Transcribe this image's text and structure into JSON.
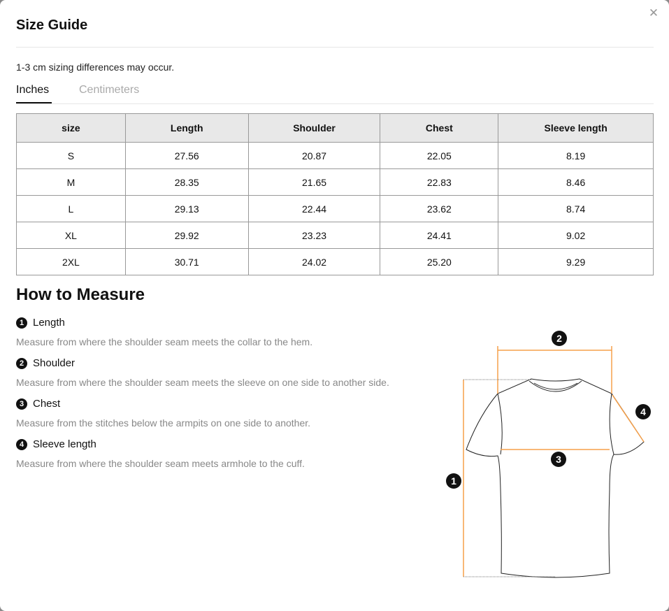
{
  "modal": {
    "title": "Size Guide",
    "close_icon": "close-x-icon",
    "note": "1-3 cm sizing differences may occur."
  },
  "tabs": [
    {
      "label": "Inches",
      "active": true
    },
    {
      "label": "Centimeters",
      "active": false
    }
  ],
  "table": {
    "headers": [
      "size",
      "Length",
      "Shoulder",
      "Chest",
      "Sleeve length"
    ],
    "rows": [
      [
        "S",
        "27.56",
        "20.87",
        "22.05",
        "8.19"
      ],
      [
        "M",
        "28.35",
        "21.65",
        "22.83",
        "8.46"
      ],
      [
        "L",
        "29.13",
        "22.44",
        "23.62",
        "8.74"
      ],
      [
        "XL",
        "29.92",
        "23.23",
        "24.41",
        "9.02"
      ],
      [
        "2XL",
        "30.71",
        "24.02",
        "25.20",
        "9.29"
      ]
    ]
  },
  "how_to": {
    "title": "How to Measure",
    "items": [
      {
        "num": "1",
        "label": "Length",
        "desc": "Measure from where the shoulder seam meets the collar to the hem."
      },
      {
        "num": "2",
        "label": "Shoulder",
        "desc": "Measure from where the shoulder seam meets the sleeve on one side to another side."
      },
      {
        "num": "3",
        "label": "Chest",
        "desc": "Measure from the stitches below the armpits on one side to another."
      },
      {
        "num": "4",
        "label": "Sleeve length",
        "desc": "Measure from where the shoulder seam meets armhole to the cuff."
      }
    ]
  },
  "diagram": {
    "markers": [
      "1",
      "2",
      "3",
      "4"
    ],
    "accent_color": "#f5a04a"
  }
}
